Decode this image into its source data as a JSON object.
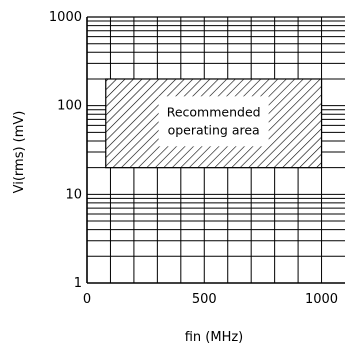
{
  "chart_data": {
    "type": "area",
    "xlabel": "fin (MHz)",
    "ylabel": "Vi(rms) (mV)",
    "xlim": [
      0,
      1100
    ],
    "ylim": [
      1,
      1000
    ],
    "y_scale": "log",
    "grid": true,
    "x_ticks": [
      {
        "value": 0,
        "label": "0"
      },
      {
        "value": 500,
        "label": "500"
      },
      {
        "value": 1000,
        "label": "1000"
      }
    ],
    "y_ticks": [
      {
        "value": 1,
        "label": "1"
      },
      {
        "value": 10,
        "label": "10"
      },
      {
        "value": 100,
        "label": "100"
      },
      {
        "value": 1000,
        "label": "1000"
      }
    ],
    "region": {
      "x_range": [
        80,
        1000
      ],
      "y_range": [
        20,
        200
      ],
      "fill": "hatched",
      "label_lines": [
        "Recommended",
        "operating area"
      ]
    }
  }
}
